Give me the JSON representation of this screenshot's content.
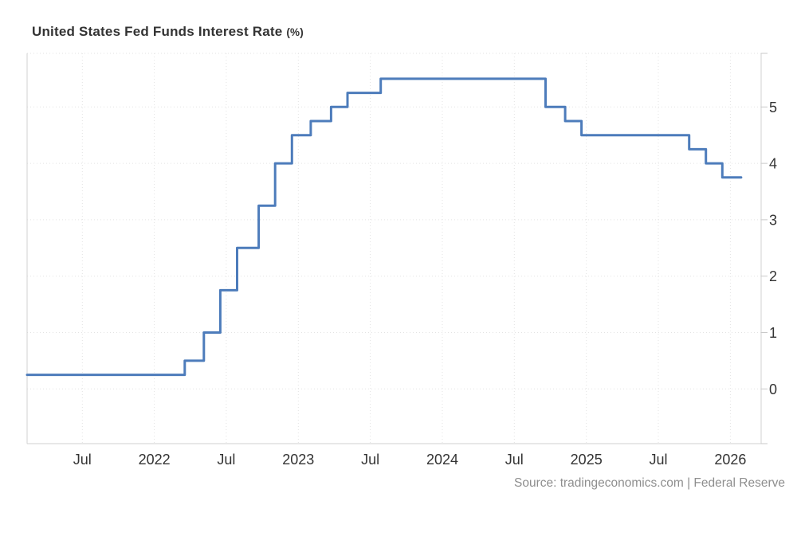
{
  "header": {
    "title": "United States Fed Funds Interest Rate",
    "unit": "(%)"
  },
  "footer": {
    "source": "Source: tradingeconomics.com | Federal Reserve"
  },
  "colors": {
    "line": "#4d7cbb",
    "grid": "#e3e3e3",
    "axis": "#d2d2d2",
    "tick": "#c9c9c9",
    "label_text": "#333333",
    "source_text": "#8e8e8e",
    "background": "#ffffff",
    "title_text": "#333333"
  },
  "chart_data": {
    "type": "line",
    "step": "after",
    "title": "United States Fed Funds Interest Rate (%)",
    "xlabel": "",
    "ylabel": "",
    "grid": "dotted",
    "legend": "none",
    "y_axis_side": "right",
    "y_ticks": [
      0,
      1,
      2,
      3,
      4,
      5
    ],
    "y_range": [
      -0.97,
      5.95
    ],
    "x_range": [
      "2021-02-13",
      "2026-03-18"
    ],
    "x_ticks": [
      {
        "date": "2021-07-01",
        "label": "Jul"
      },
      {
        "date": "2022-01-01",
        "label": "2022"
      },
      {
        "date": "2022-07-01",
        "label": "Jul"
      },
      {
        "date": "2023-01-01",
        "label": "2023"
      },
      {
        "date": "2023-07-01",
        "label": "Jul"
      },
      {
        "date": "2024-01-01",
        "label": "2024"
      },
      {
        "date": "2024-07-01",
        "label": "Jul"
      },
      {
        "date": "2025-01-01",
        "label": "2025"
      },
      {
        "date": "2025-07-01",
        "label": "Jul"
      },
      {
        "date": "2026-01-01",
        "label": "2026"
      }
    ],
    "series": [
      {
        "name": "United States Fed Funds Interest Rate",
        "color": "#4d7cbb",
        "points": [
          [
            "2021-02-13",
            0.25
          ],
          [
            "2022-03-17",
            0.5
          ],
          [
            "2022-05-05",
            1.0
          ],
          [
            "2022-06-16",
            1.75
          ],
          [
            "2022-07-28",
            2.5
          ],
          [
            "2022-09-22",
            3.25
          ],
          [
            "2022-11-03",
            4.0
          ],
          [
            "2022-12-15",
            4.5
          ],
          [
            "2023-02-02",
            4.75
          ],
          [
            "2023-03-23",
            5.0
          ],
          [
            "2023-05-04",
            5.25
          ],
          [
            "2023-07-27",
            5.5
          ],
          [
            "2024-09-19",
            5.0
          ],
          [
            "2024-11-08",
            4.75
          ],
          [
            "2024-12-19",
            4.5
          ],
          [
            "2025-09-18",
            4.25
          ],
          [
            "2025-10-30",
            4.0
          ],
          [
            "2025-12-11",
            3.75
          ],
          [
            "2026-01-28",
            3.75
          ]
        ]
      }
    ]
  }
}
